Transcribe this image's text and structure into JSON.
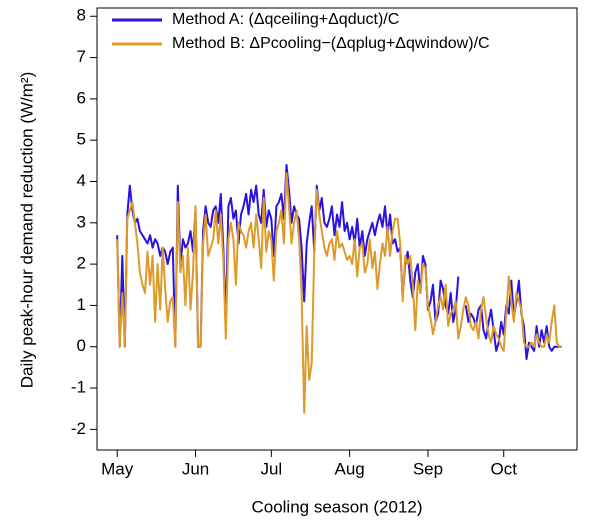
{
  "chart_data": {
    "type": "line",
    "xlabel": "Cooling season (2012)",
    "ylabel": "Daily peak-hour demand reduction (W/m²)",
    "xlim": [
      -8,
      182
    ],
    "ylim": [
      -2.5,
      8.2
    ],
    "xticks": [
      {
        "value": 0,
        "label": "May"
      },
      {
        "value": 31,
        "label": "Jun"
      },
      {
        "value": 61,
        "label": "Jul"
      },
      {
        "value": 92,
        "label": "Aug"
      },
      {
        "value": 123,
        "label": "Sep"
      },
      {
        "value": 153,
        "label": "Oct"
      }
    ],
    "yticks": [
      -2,
      -1,
      0,
      1,
      2,
      3,
      4,
      5,
      6,
      7,
      8
    ],
    "legend": "upper left",
    "box": true,
    "x": [
      0,
      1,
      2,
      3,
      4,
      5,
      6,
      7,
      8,
      9,
      10,
      11,
      12,
      13,
      14,
      15,
      16,
      17,
      18,
      19,
      20,
      21,
      22,
      23,
      24,
      25,
      26,
      27,
      28,
      29,
      30,
      31,
      32,
      33,
      34,
      35,
      36,
      37,
      38,
      39,
      40,
      41,
      42,
      43,
      44,
      45,
      46,
      47,
      48,
      49,
      50,
      51,
      52,
      53,
      54,
      55,
      56,
      57,
      58,
      59,
      60,
      61,
      62,
      63,
      64,
      65,
      66,
      67,
      68,
      69,
      70,
      71,
      72,
      73,
      74,
      75,
      76,
      77,
      78,
      79,
      80,
      81,
      82,
      83,
      84,
      85,
      86,
      87,
      88,
      89,
      90,
      91,
      92,
      93,
      94,
      95,
      96,
      97,
      98,
      99,
      100,
      101,
      102,
      103,
      104,
      105,
      106,
      107,
      108,
      109,
      110,
      111,
      112,
      113,
      114,
      115,
      116,
      117,
      118,
      119,
      120,
      121,
      122,
      123,
      124,
      125,
      126,
      127,
      128,
      129,
      130,
      131,
      132,
      133,
      134,
      135,
      136,
      137,
      138,
      139,
      140,
      141,
      142,
      143,
      144,
      145,
      146,
      147,
      148,
      149,
      150,
      151,
      152,
      153,
      154,
      155,
      156,
      157,
      158,
      159,
      160,
      161,
      162,
      163,
      164,
      165,
      166,
      167,
      168,
      169,
      170,
      171,
      172,
      173,
      174,
      175,
      176
    ],
    "series": [
      {
        "name": "Method A: (Δqceiling+Δqduct)/C",
        "color": "#2a12e0",
        "values": [
          2.7,
          0,
          2.2,
          0,
          3.2,
          3.9,
          3.3,
          3.0,
          3.1,
          2.8,
          2.7,
          2.6,
          2.5,
          2.7,
          2.4,
          2.6,
          2.5,
          2.2,
          2.4,
          2.3,
          2.0,
          2.3,
          2.4,
          0,
          3.9,
          2.0,
          2.6,
          2.4,
          2.5,
          2.8,
          2.3,
          3.3,
          0,
          0,
          2.8,
          3.4,
          3.0,
          2.9,
          3.3,
          3.4,
          3.0,
          3.7,
          2.4,
          0.6,
          3.4,
          3.6,
          3.1,
          3.3,
          2.5,
          3.2,
          3.4,
          3.7,
          3.2,
          3.8,
          3.5,
          3.9,
          3.2,
          3.0,
          3.8,
          2.9,
          3.3,
          3.1,
          2.2,
          3.4,
          3.5,
          3.7,
          3.1,
          4.4,
          3.8,
          3.0,
          3.4,
          3.2,
          3.1,
          2.4,
          1.1,
          2.5,
          3.0,
          3.4,
          2.3,
          3.9,
          3.3,
          3.6,
          3.0,
          2.9,
          3.1,
          3.4,
          2.7,
          3.2,
          2.9,
          3.5,
          2.8,
          3.0,
          2.6,
          2.9,
          2.5,
          3.1,
          2.4,
          2.8,
          2.2,
          2.6,
          2.8,
          3.0,
          2.7,
          3.0,
          3.2,
          2.9,
          3.4,
          2.7,
          3.2,
          2.5,
          2.6,
          2.3,
          2.4,
          1.2,
          2.0,
          2.3,
          1.6,
          1.2,
          1.8,
          2.0,
          1.3,
          2.2,
          2.0,
          0.9,
          1.1,
          1.5,
          0.6,
          0.8,
          1.6,
          1.4,
          1.0,
          0.8,
          1.3,
          0.6,
          0.9,
          1.7,
          null,
          null,
          1.0,
          0.6,
          0.8,
          0.7,
          0.5,
          0.9,
          1.0,
          0.4,
          0.2,
          0.6,
          0.9,
          0.4,
          -0.1,
          0.1,
          0.6,
          0.3,
          1.0,
          0.8,
          1.6,
          0.7,
          1.1,
          1.6,
          0.8,
          0.5,
          -0.3,
          0.1,
          0.0,
          -0.1,
          0.5,
          0.0,
          0.4,
          0.1,
          0.5,
          0.0,
          -0.1,
          0.0,
          0.0,
          0.0,
          0.0
        ]
      },
      {
        "name": "Method B: ΔPcooling−(Δqplug+Δqwindow)/C",
        "color": "#dd9a2a",
        "values": [
          2.6,
          0,
          1.3,
          0,
          3.1,
          3.3,
          3.5,
          3.0,
          2.5,
          1.8,
          1.5,
          1.3,
          2.3,
          1.5,
          2.2,
          0.6,
          2.0,
          0.9,
          2.4,
          1.4,
          0.6,
          1.1,
          1.2,
          0,
          3.5,
          1.8,
          2.2,
          1.0,
          2.4,
          0.9,
          1.8,
          3.4,
          0,
          0,
          2.5,
          3.2,
          2.2,
          2.4,
          2.6,
          3.3,
          2.5,
          3.2,
          2.1,
          0.2,
          2.6,
          3.0,
          2.6,
          1.5,
          3.0,
          2.8,
          2.7,
          2.4,
          2.8,
          3.0,
          2.4,
          3.2,
          2.6,
          1.9,
          3.6,
          2.3,
          2.8,
          2.6,
          1.6,
          2.8,
          3.0,
          3.3,
          2.5,
          4.2,
          3.4,
          2.5,
          3.0,
          3.3,
          2.6,
          1.3,
          -1.6,
          0.5,
          -0.8,
          -0.4,
          2.3,
          3.8,
          3.2,
          2.8,
          2.4,
          2.2,
          2.5,
          2.6,
          2.1,
          2.8,
          2.4,
          2.5,
          2.3,
          2.1,
          2.2,
          2.0,
          2.6,
          1.7,
          2.4,
          2.5,
          1.8,
          2.0,
          2.6,
          1.9,
          2.3,
          1.4,
          2.0,
          2.5,
          2.2,
          2.9,
          2.2,
          2.8,
          3.1,
          3.1,
          2.5,
          1.1,
          2.2,
          2.0,
          2.2,
          1.5,
          0.4,
          1.6,
          1.3,
          2.0,
          1.9,
          1.0,
          0.7,
          0.3,
          0.6,
          1.0,
          1.2,
          0.9,
          1.5,
          0.5,
          0.8,
          0.9,
          1.1,
          0.2,
          0.5,
          0.9,
          1.2,
          1.0,
          0.5,
          0.4,
          0.6,
          0.2,
          0.9,
          1.2,
          0.7,
          0.3,
          0.1,
          0.5,
          0.3,
          0.2,
          0.0,
          -0.1,
          0.8,
          1.7,
          1.1,
          0.6,
          1.3,
          1.1,
          0.9,
          0.1,
          0.0,
          0.0,
          0.1,
          0.0,
          0.3,
          0.1,
          0.0,
          0.0,
          0.3,
          0.1,
          0.6,
          1.0,
          0.1,
          0.0,
          0.0
        ]
      }
    ]
  }
}
